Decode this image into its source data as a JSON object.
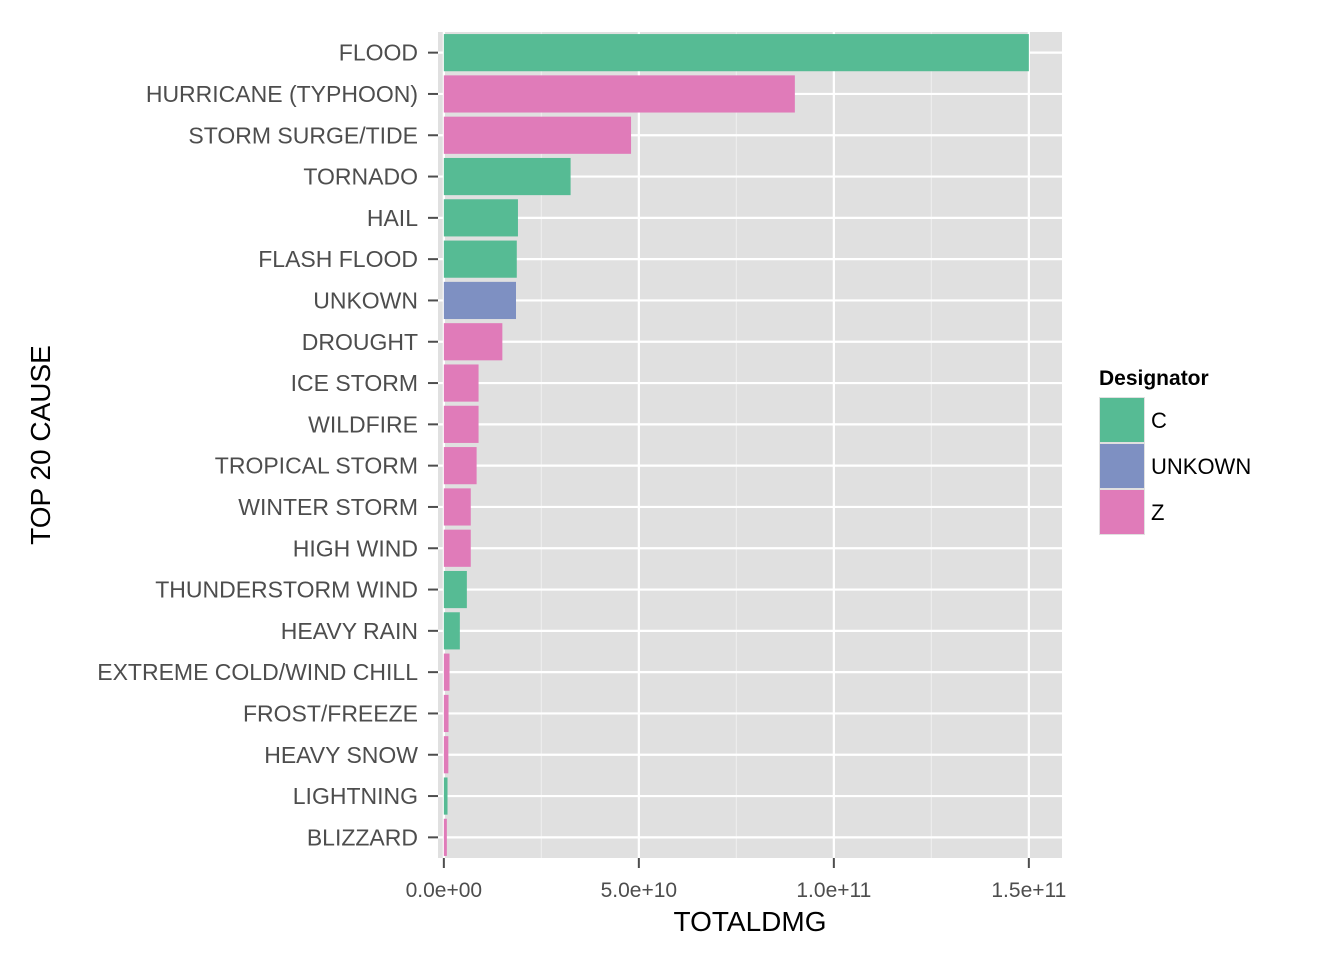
{
  "chart_data": {
    "type": "bar",
    "orientation": "horizontal",
    "xlabel": "TOTALDMG",
    "ylabel": "TOP 20 CAUSE",
    "xlim": [
      -1500000000.0,
      158500000000.0
    ],
    "x_ticks": [
      0,
      50000000000.0,
      100000000000.0,
      150000000000.0
    ],
    "x_tick_labels": [
      "0.0e+00",
      "5.0e+10",
      "1.0e+11",
      "1.5e+11"
    ],
    "grid": true,
    "legend": {
      "title": "Designator",
      "position": "right",
      "entries": [
        {
          "label": "C",
          "color": "#56bb94"
        },
        {
          "label": "UNKOWN",
          "color": "#7e90c2"
        },
        {
          "label": "Z",
          "color": "#e07bb9"
        }
      ]
    },
    "categories": [
      "FLOOD",
      "HURRICANE (TYPHOON)",
      "STORM SURGE/TIDE",
      "TORNADO",
      "HAIL",
      "FLASH FLOOD",
      "UNKOWN",
      "DROUGHT",
      "ICE STORM",
      "WILDFIRE",
      "TROPICAL STORM",
      "WINTER STORM",
      "HIGH WIND",
      "THUNDERSTORM WIND",
      "HEAVY RAIN",
      "EXTREME COLD/WIND CHILL",
      "FROST/FREEZE",
      "HEAVY SNOW",
      "LIGHTNING",
      "BLIZZARD"
    ],
    "values": [
      150000000000.0,
      90000000000.0,
      48000000000.0,
      32500000000.0,
      19000000000.0,
      18700000000.0,
      18500000000.0,
      15000000000.0,
      8900000000.0,
      8900000000.0,
      8400000000.0,
      6900000000.0,
      6900000000.0,
      5900000000.0,
      4100000000.0,
      1450000000.0,
      1200000000.0,
      1150000000.0,
      940000000.0,
      770000000.0
    ],
    "designator": [
      "C",
      "Z",
      "Z",
      "C",
      "C",
      "C",
      "UNKOWN",
      "Z",
      "Z",
      "Z",
      "Z",
      "Z",
      "Z",
      "C",
      "C",
      "Z",
      "Z",
      "Z",
      "C",
      "Z"
    ]
  },
  "colors": {
    "panel_background": "#e0e0e0",
    "grid_major": "#ffffff",
    "grid_minor": "#ececec"
  }
}
